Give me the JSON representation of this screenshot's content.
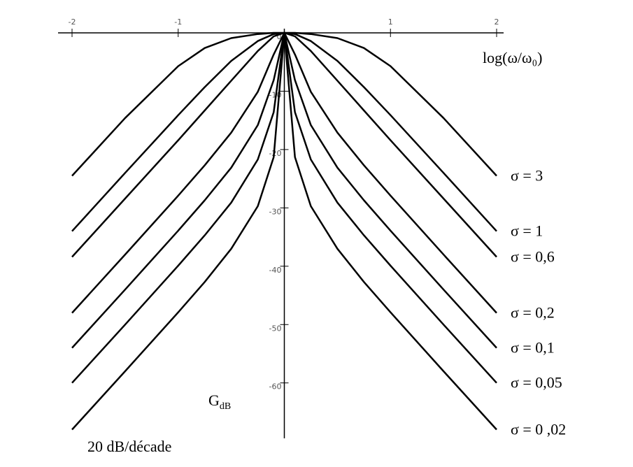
{
  "chart_data": {
    "type": "line",
    "xlabel": "log(ω/ω₀)",
    "ylabel_main": "G",
    "ylabel_sub": "dB",
    "annotation": "20 dB/décade",
    "x": [
      -2,
      -1.5,
      -1,
      -0.75,
      -0.5,
      -0.25,
      -0.1,
      0,
      0.1,
      0.25,
      0.5,
      0.75,
      1,
      1.5,
      2
    ],
    "series": [
      {
        "name": "σ = 3",
        "color": "#000000",
        "values": [
          -24.5,
          -14.6,
          -5.7,
          -2.6,
          -0.9,
          -0.2,
          0,
          0,
          0,
          -0.2,
          -0.9,
          -2.6,
          -5.7,
          -14.6,
          -24.5
        ]
      },
      {
        "name": "σ = 1",
        "color": "#000000",
        "values": [
          -34.0,
          -24.0,
          -14.1,
          -9.3,
          -4.8,
          -1.4,
          -0.2,
          0,
          -0.2,
          -1.4,
          -4.8,
          -9.3,
          -14.1,
          -24.0,
          -34.0
        ]
      },
      {
        "name": "σ = 0,6",
        "color": "#000000",
        "values": [
          -38.4,
          -28.4,
          -18.4,
          -13.3,
          -8.2,
          -3.1,
          -0.6,
          0,
          -0.6,
          -3.1,
          -8.2,
          -13.3,
          -18.4,
          -28.4,
          -38.4
        ]
      },
      {
        "name": "σ = 0,2",
        "color": "#000000",
        "values": [
          -48.0,
          -38.0,
          -27.9,
          -22.7,
          -17.1,
          -10.1,
          -3.7,
          0,
          -3.7,
          -10.1,
          -17.1,
          -22.7,
          -27.9,
          -38.0,
          -48.0
        ]
      },
      {
        "name": "σ = 0,1",
        "color": "#000000",
        "values": [
          -54.0,
          -44.0,
          -33.9,
          -28.7,
          -23.1,
          -15.8,
          -8.1,
          0,
          -8.1,
          -15.8,
          -23.1,
          -28.7,
          -33.9,
          -44.0,
          -54.0
        ]
      },
      {
        "name": "σ = 0,05",
        "color": "#000000",
        "values": [
          -60.0,
          -50.0,
          -39.9,
          -34.7,
          -29.1,
          -21.7,
          -13.6,
          0,
          -13.6,
          -21.7,
          -29.1,
          -34.7,
          -39.9,
          -50.0,
          -60.0
        ]
      },
      {
        "name": "σ = 0 ,02",
        "color": "#000000",
        "values": [
          -68.0,
          -58.0,
          -47.9,
          -42.7,
          -37.0,
          -29.7,
          -21.3,
          0,
          -21.3,
          -29.7,
          -37.0,
          -42.7,
          -47.9,
          -58.0,
          -68.0
        ]
      }
    ],
    "xlim": [
      -2,
      2
    ],
    "xticks": [
      -2,
      -1,
      1,
      2
    ],
    "ylim": [
      -69.5,
      0
    ],
    "yticks": [
      0,
      -10,
      -20,
      -30,
      -40,
      -50,
      -60
    ]
  }
}
